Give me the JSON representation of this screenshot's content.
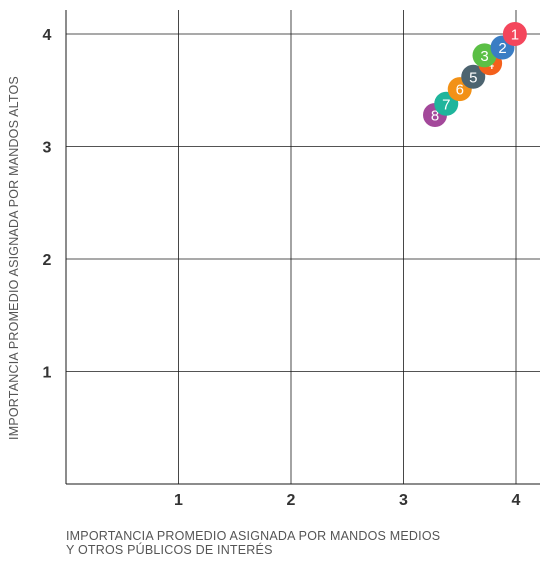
{
  "chart_data": {
    "type": "scatter",
    "xlabel_lines": [
      "IMPORTANCIA PROMEDIO ASIGNADA POR MANDOS MEDIOS",
      "Y OTROS PÚBLICOS DE INTERÉS"
    ],
    "ylabel": "IMPORTANCIA PROMEDIO ASIGNADA POR MANDOS ALTOS",
    "xlim": [
      0,
      4
    ],
    "ylim": [
      0,
      4
    ],
    "x_ticks": [
      "1",
      "2",
      "3",
      "4"
    ],
    "y_ticks": [
      "1",
      "2",
      "3",
      "4"
    ],
    "grid": true,
    "points": [
      {
        "label": "8",
        "x": 3.28,
        "y": 3.28,
        "color": "#a3489a"
      },
      {
        "label": "7",
        "x": 3.38,
        "y": 3.38,
        "color": "#1fb59c"
      },
      {
        "label": "6",
        "x": 3.5,
        "y": 3.51,
        "color": "#f29117"
      },
      {
        "label": "5",
        "x": 3.62,
        "y": 3.62,
        "color": "#4d6470"
      },
      {
        "label": "4",
        "x": 3.77,
        "y": 3.74,
        "color": "#f4601c"
      },
      {
        "label": "3",
        "x": 3.72,
        "y": 3.81,
        "color": "#5bbf45"
      },
      {
        "label": "2",
        "x": 3.88,
        "y": 3.88,
        "color": "#3a7dc4"
      },
      {
        "label": "1",
        "x": 3.99,
        "y": 4.0,
        "color": "#f4465c"
      }
    ]
  }
}
